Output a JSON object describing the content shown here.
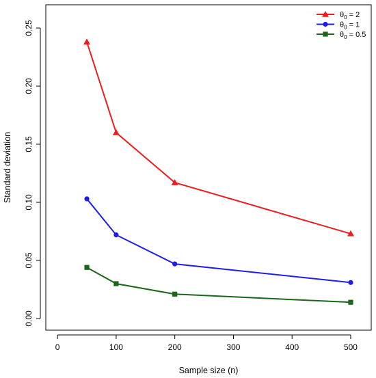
{
  "chart_data": {
    "type": "line",
    "title": "",
    "xlabel": "Sample size (n)",
    "ylabel": "Standard deviation",
    "xlim": [
      -20,
      535
    ],
    "ylim": [
      -0.01,
      0.27
    ],
    "x_ticks": [
      0,
      100,
      200,
      300,
      400,
      500
    ],
    "y_ticks": [
      0.0,
      0.05,
      0.1,
      0.15,
      0.2,
      0.25
    ],
    "x_tick_labels": [
      "0",
      "100",
      "200",
      "300",
      "400",
      "500"
    ],
    "y_tick_labels": [
      "0.00",
      "0.05",
      "0.10",
      "0.15",
      "0.20",
      "0.25"
    ],
    "grid": false,
    "legend_position": "top-right",
    "x": [
      50,
      100,
      200,
      500
    ],
    "series": [
      {
        "name_symbol": "θ",
        "name_subscript": "0",
        "name_value": " = 2",
        "color": "#ee1c1c",
        "marker": "triangle",
        "values": [
          0.238,
          0.16,
          0.117,
          0.073
        ]
      },
      {
        "name_symbol": "θ",
        "name_subscript": "0",
        "name_value": " = 1",
        "color": "#1c1cee",
        "marker": "circle",
        "values": [
          0.103,
          0.072,
          0.047,
          0.031
        ]
      },
      {
        "name_symbol": "θ",
        "name_subscript": "0",
        "name_value": " = 0.5",
        "color": "#1a661a",
        "marker": "square",
        "values": [
          0.044,
          0.03,
          0.021,
          0.014
        ]
      }
    ]
  }
}
